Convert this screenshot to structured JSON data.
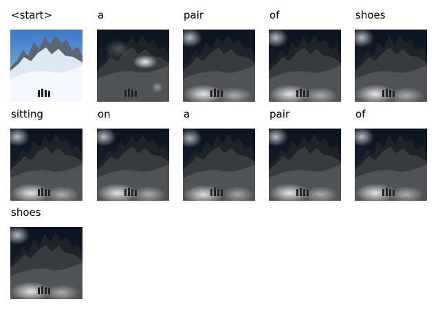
{
  "figure": {
    "words": [
      "<start>",
      "a",
      "pair",
      "of",
      "shoes",
      "sitting",
      "on",
      "a",
      "pair",
      "of",
      "shoes"
    ],
    "cells": [
      {
        "word": "<start>",
        "style": "original"
      },
      {
        "word": "a",
        "style": "spot-center"
      },
      {
        "word": "pair",
        "style": "spot-bottom"
      },
      {
        "word": "of",
        "style": "spot-bottom"
      },
      {
        "word": "shoes",
        "style": "spot-bottom"
      },
      {
        "word": "sitting",
        "style": "spot-bottom"
      },
      {
        "word": "on",
        "style": "spot-bottom"
      },
      {
        "word": "a",
        "style": "spot-bottom-left"
      },
      {
        "word": "pair",
        "style": "spot-bottom"
      },
      {
        "word": "of",
        "style": "spot-bottom"
      },
      {
        "word": "shoes",
        "style": "spot-bottom"
      }
    ]
  }
}
